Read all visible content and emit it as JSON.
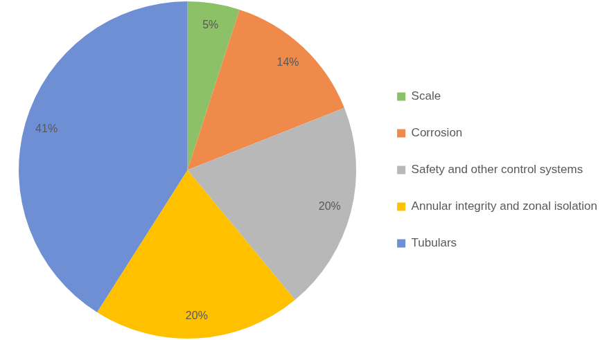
{
  "chart_data": {
    "type": "pie",
    "categories": [
      "Scale",
      "Corrosion",
      "Safety and other control systems",
      "Annular integrity and zonal isolation",
      "Tubulars"
    ],
    "values": [
      5,
      14,
      20,
      20,
      41
    ],
    "value_labels": [
      "5%",
      "14%",
      "20%",
      "20%",
      "41%"
    ],
    "colors": [
      "#8cc168",
      "#f08a4b",
      "#b8b8b8",
      "#ffc000",
      "#6e8fd4"
    ],
    "data_labels": true,
    "legend": "right"
  }
}
